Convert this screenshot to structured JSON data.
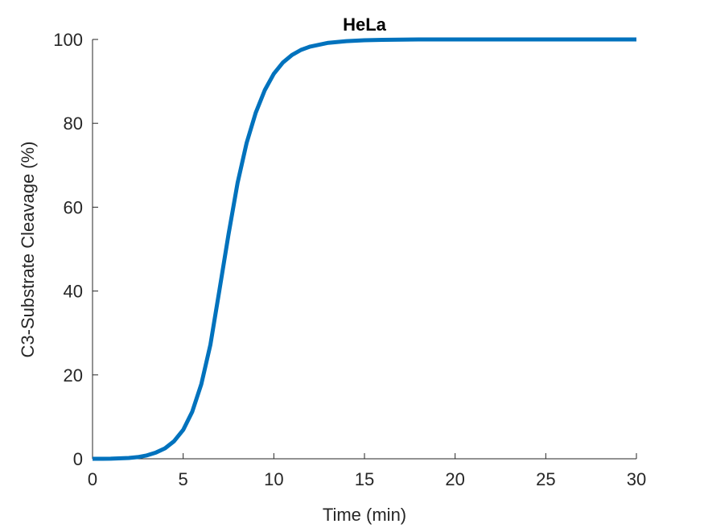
{
  "chart_data": {
    "type": "line",
    "title": "HeLa",
    "xlabel": "Time (min)",
    "ylabel": "C3-Substrate Cleavage (%)",
    "xlim": [
      0,
      30
    ],
    "ylim": [
      0,
      100
    ],
    "xticks": [
      0,
      5,
      10,
      15,
      20,
      25,
      30
    ],
    "yticks": [
      0,
      20,
      40,
      60,
      80,
      100
    ],
    "grid": false,
    "series": [
      {
        "color": "#0072BD",
        "x": [
          0,
          1,
          2,
          2.5,
          3,
          3.5,
          4,
          4.5,
          5,
          5.5,
          6,
          6.5,
          7,
          7.5,
          8,
          8.5,
          9,
          9.5,
          10,
          10.5,
          11,
          11.5,
          12,
          13,
          14,
          15,
          16,
          18,
          20,
          25,
          30
        ],
        "y": [
          0,
          0.02,
          0.2,
          0.4,
          0.8,
          1.5,
          2.5,
          4.2,
          6.9,
          11.2,
          17.8,
          27.2,
          40.2,
          53.5,
          65.8,
          75.3,
          82.5,
          87.9,
          91.8,
          94.5,
          96.3,
          97.5,
          98.3,
          99.2,
          99.6,
          99.8,
          99.9,
          100,
          100,
          100,
          100
        ]
      }
    ]
  }
}
